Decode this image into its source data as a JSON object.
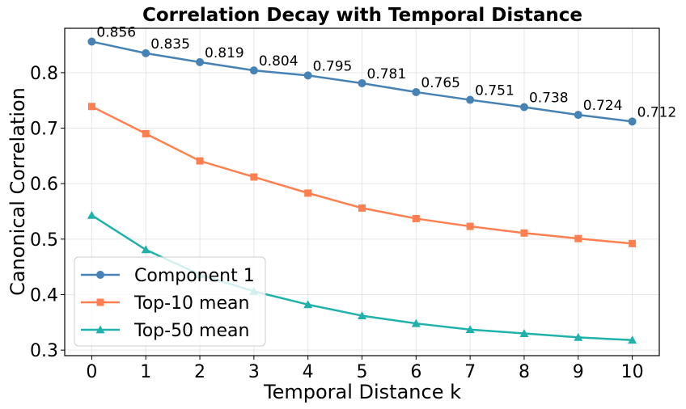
{
  "chart_data": {
    "type": "line",
    "title": "Correlation Decay with Temporal Distance",
    "xlabel": "Temporal Distance k",
    "ylabel": "Canonical Correlation",
    "x": [
      0,
      1,
      2,
      3,
      4,
      5,
      6,
      7,
      8,
      9,
      10
    ],
    "xlim": [
      -0.5,
      10.5
    ],
    "ylim": [
      0.29,
      0.88
    ],
    "yticks": [
      0.3,
      0.4,
      0.5,
      0.6,
      0.7,
      0.8
    ],
    "ytick_labels": [
      "0.3",
      "0.4",
      "0.5",
      "0.6",
      "0.7",
      "0.8"
    ],
    "xtick_labels": [
      "0",
      "1",
      "2",
      "3",
      "4",
      "5",
      "6",
      "7",
      "8",
      "9",
      "10"
    ],
    "grid": true,
    "legend_position": "lower-left",
    "series": [
      {
        "name": "Component 1",
        "color": "#4682b4",
        "marker": "circle",
        "values": [
          0.856,
          0.835,
          0.819,
          0.804,
          0.795,
          0.781,
          0.765,
          0.751,
          0.738,
          0.724,
          0.712
        ],
        "data_labels": [
          "0.856",
          "0.835",
          "0.819",
          "0.804",
          "0.795",
          "0.781",
          "0.765",
          "0.751",
          "0.738",
          "0.724",
          "0.712"
        ]
      },
      {
        "name": "Top-10 mean",
        "color": "#ff7f50",
        "marker": "square",
        "values": [
          0.739,
          0.69,
          0.641,
          0.612,
          0.583,
          0.556,
          0.537,
          0.523,
          0.511,
          0.501,
          0.492
        ]
      },
      {
        "name": "Top-50 mean",
        "color": "#20b2aa",
        "marker": "triangle",
        "values": [
          0.543,
          0.481,
          0.436,
          0.406,
          0.382,
          0.362,
          0.348,
          0.337,
          0.33,
          0.323,
          0.318
        ]
      }
    ]
  }
}
